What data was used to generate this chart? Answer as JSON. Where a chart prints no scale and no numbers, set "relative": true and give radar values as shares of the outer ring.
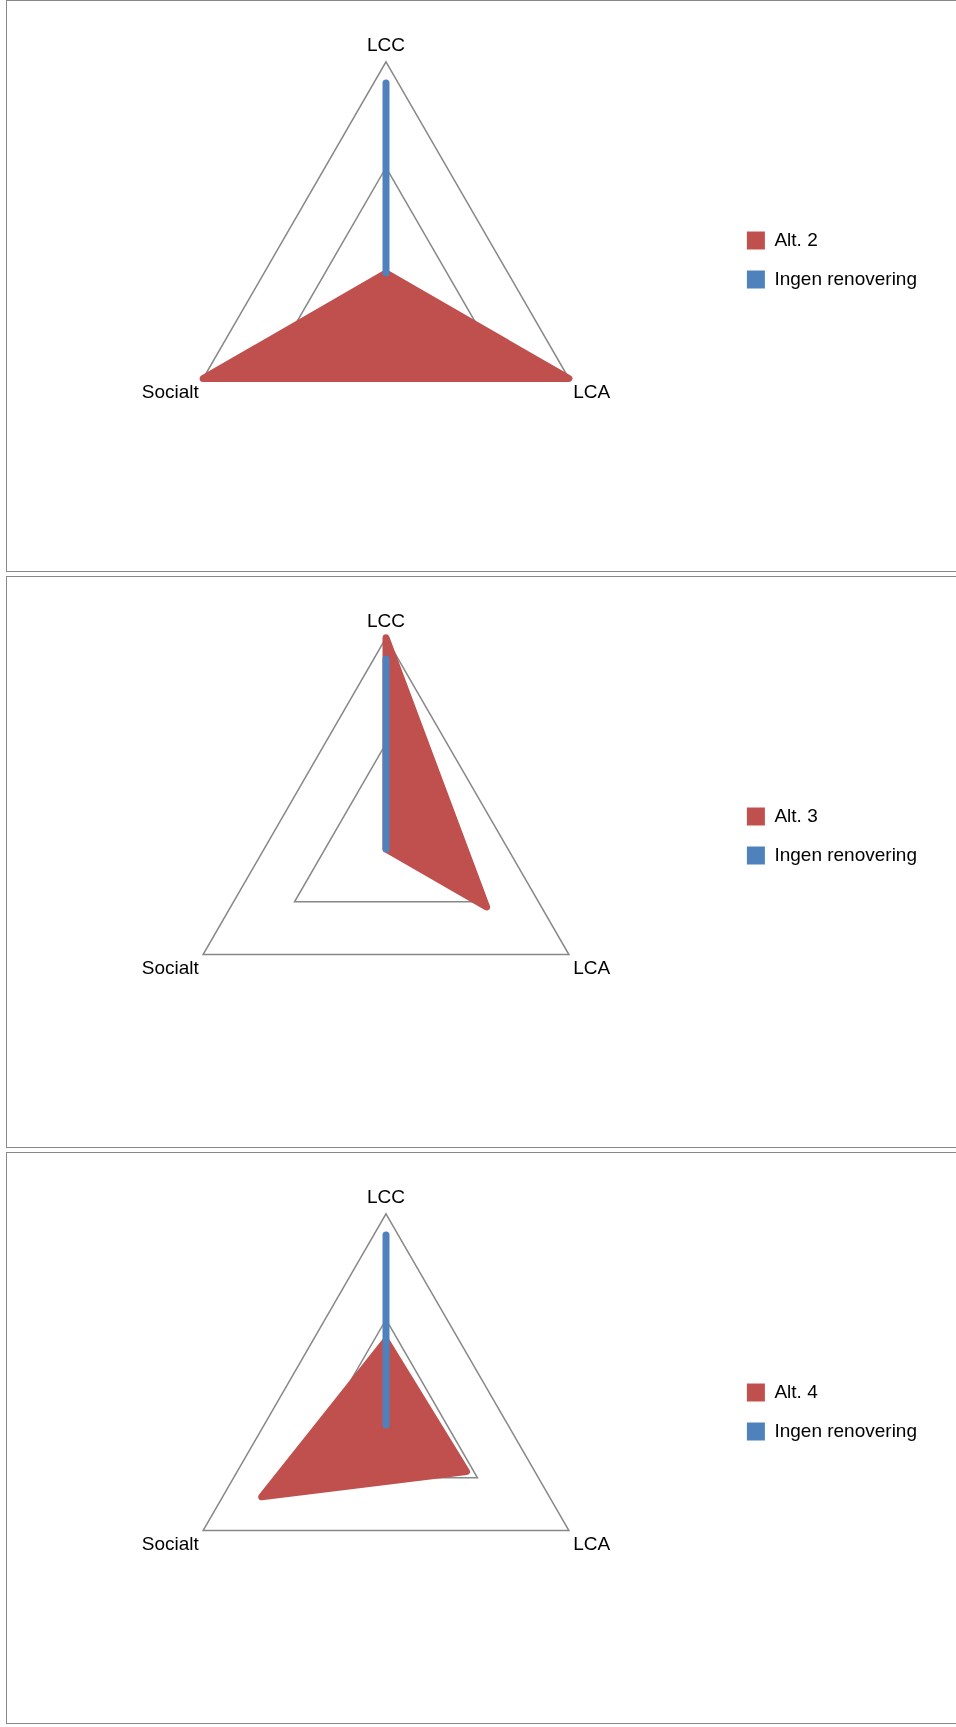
{
  "chart_data": [
    {
      "type": "radar",
      "relative": true,
      "legend": "right",
      "categories": [
        "LCC",
        "LCA",
        "Socialt"
      ],
      "series": [
        {
          "name": "Alt. 2",
          "color": "#c0504d",
          "values": [
            0,
            1,
            1
          ]
        },
        {
          "name": "Ingen renovering",
          "color": "#4f81bd",
          "values": [
            0.9,
            0,
            0
          ]
        }
      ]
    },
    {
      "type": "radar",
      "relative": true,
      "legend": "right",
      "categories": [
        "LCC",
        "LCA",
        "Socialt"
      ],
      "series": [
        {
          "name": "Alt. 3",
          "color": "#c0504d",
          "values": [
            1,
            0.55,
            0
          ]
        },
        {
          "name": "Ingen renovering",
          "color": "#4f81bd",
          "values": [
            0.9,
            0,
            0
          ]
        }
      ]
    },
    {
      "type": "radar",
      "relative": true,
      "legend": "right",
      "categories": [
        "LCC",
        "LCA",
        "Socialt"
      ],
      "series": [
        {
          "name": "Alt. 4",
          "color": "#c0504d",
          "values": [
            0.4,
            0.44,
            0.68
          ]
        },
        {
          "name": "Ingen renovering",
          "color": "#4f81bd",
          "values": [
            0.9,
            0,
            0
          ]
        }
      ]
    }
  ]
}
